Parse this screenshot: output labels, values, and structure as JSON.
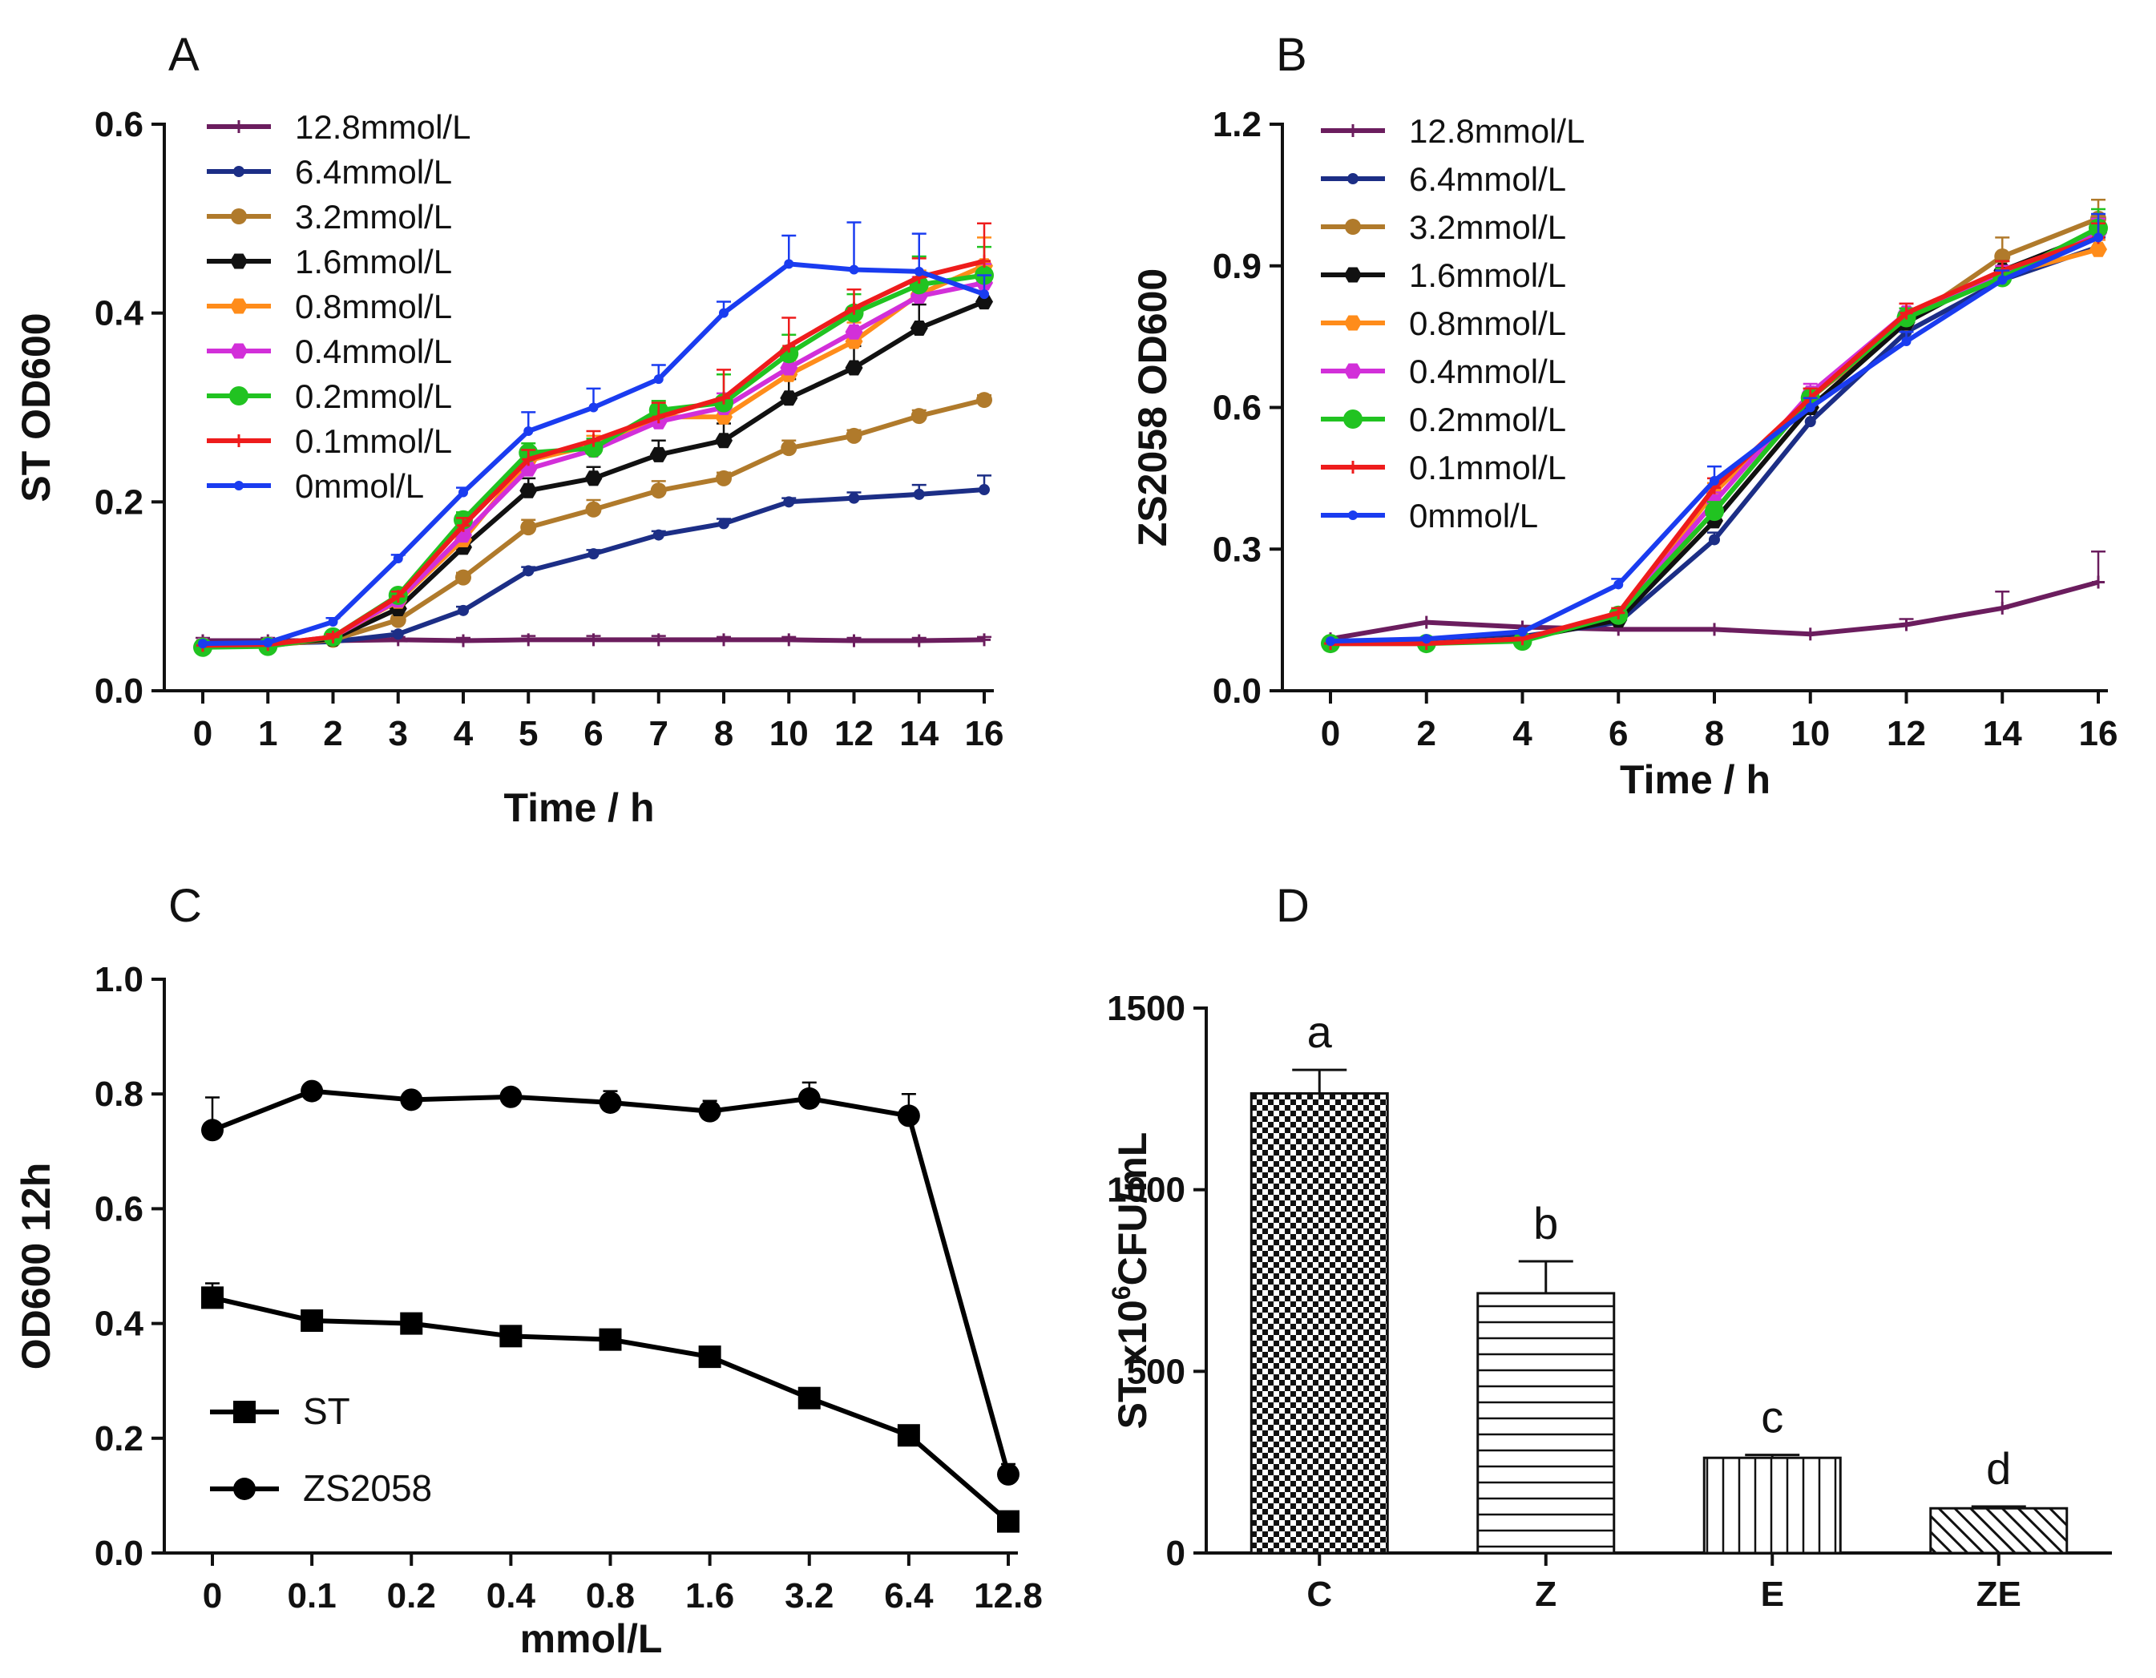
{
  "chart_data": [
    {
      "panel": "A",
      "type": "line",
      "xlabel": "Time / h",
      "ylabel": "ST OD600",
      "ylim": [
        0,
        0.6
      ],
      "yticks": [
        "0.0",
        "0.2",
        "0.4",
        "0.6"
      ],
      "categories": [
        "0",
        "1",
        "2",
        "3",
        "4",
        "5",
        "6",
        "7",
        "8",
        "10",
        "12",
        "14",
        "16"
      ],
      "series": [
        {
          "name": "12.8mmol/L",
          "color": "#6b1d5e",
          "values": [
            0.053,
            0.053,
            0.053,
            0.054,
            0.053,
            0.054,
            0.054,
            0.054,
            0.054,
            0.054,
            0.053,
            0.053,
            0.054
          ],
          "errors": [
            0.003,
            0.003,
            0.003,
            0.003,
            0.003,
            0.004,
            0.004,
            0.004,
            0.003,
            0.003,
            0.003,
            0.003,
            0.003
          ]
        },
        {
          "name": "6.4mmol/L",
          "color": "#1c2e86",
          "values": [
            0.05,
            0.05,
            0.052,
            0.06,
            0.085,
            0.127,
            0.145,
            0.165,
            0.177,
            0.2,
            0.204,
            0.208,
            0.213
          ],
          "errors": [
            0.002,
            0.002,
            0.003,
            0.003,
            0.004,
            0.004,
            0.004,
            0.004,
            0.005,
            0.004,
            0.006,
            0.01,
            0.015
          ]
        },
        {
          "name": "3.2mmol/L",
          "color": "#b07a2b",
          "values": [
            0.048,
            0.048,
            0.054,
            0.075,
            0.12,
            0.173,
            0.192,
            0.212,
            0.225,
            0.257,
            0.27,
            0.291,
            0.308
          ],
          "errors": [
            0.002,
            0.002,
            0.003,
            0.004,
            0.005,
            0.008,
            0.01,
            0.01,
            0.006,
            0.008,
            0.006,
            0.006,
            0.005
          ]
        },
        {
          "name": "1.6mmol/L",
          "color": "#111111",
          "values": [
            0.048,
            0.049,
            0.055,
            0.087,
            0.152,
            0.212,
            0.225,
            0.25,
            0.265,
            0.31,
            0.342,
            0.384,
            0.412
          ],
          "errors": [
            0.002,
            0.002,
            0.003,
            0.008,
            0.012,
            0.013,
            0.012,
            0.015,
            0.018,
            0.02,
            0.023,
            0.025,
            0.04
          ]
        },
        {
          "name": "0.8mmol/L",
          "color": "#ff8c1a",
          "values": [
            0.048,
            0.049,
            0.057,
            0.095,
            0.16,
            0.244,
            0.26,
            0.29,
            0.29,
            0.335,
            0.37,
            0.42,
            0.45
          ],
          "errors": [
            0.002,
            0.002,
            0.003,
            0.005,
            0.008,
            0.01,
            0.01,
            0.01,
            0.015,
            0.015,
            0.02,
            0.025,
            0.03
          ]
        },
        {
          "name": "0.4mmol/L",
          "color": "#d22fd9",
          "values": [
            0.048,
            0.049,
            0.057,
            0.096,
            0.165,
            0.235,
            0.255,
            0.285,
            0.3,
            0.342,
            0.38,
            0.418,
            0.432
          ],
          "errors": [
            0.002,
            0.002,
            0.003,
            0.005,
            0.008,
            0.01,
            0.01,
            0.012,
            0.015,
            0.015,
            0.018,
            0.02,
            0.02
          ]
        },
        {
          "name": "0.2mmol/L",
          "color": "#21c321",
          "values": [
            0.046,
            0.047,
            0.057,
            0.101,
            0.181,
            0.252,
            0.257,
            0.297,
            0.305,
            0.357,
            0.4,
            0.43,
            0.44
          ],
          "errors": [
            0.002,
            0.002,
            0.003,
            0.005,
            0.008,
            0.01,
            0.01,
            0.01,
            0.03,
            0.02,
            0.02,
            0.03,
            0.03
          ]
        },
        {
          "name": "0.1mmol/L",
          "color": "#ee1c1c",
          "values": [
            0.048,
            0.049,
            0.057,
            0.1,
            0.175,
            0.245,
            0.265,
            0.29,
            0.31,
            0.365,
            0.405,
            0.438,
            0.455
          ],
          "errors": [
            0.002,
            0.002,
            0.003,
            0.005,
            0.008,
            0.01,
            0.01,
            0.015,
            0.03,
            0.03,
            0.02,
            0.02,
            0.04
          ]
        },
        {
          "name": "0mmol/L",
          "color": "#1a3cf0",
          "values": [
            0.05,
            0.051,
            0.073,
            0.14,
            0.21,
            0.275,
            0.3,
            0.33,
            0.4,
            0.452,
            0.446,
            0.444,
            0.42
          ],
          "errors": [
            0.002,
            0.002,
            0.004,
            0.004,
            0.005,
            0.02,
            0.02,
            0.015,
            0.012,
            0.03,
            0.05,
            0.04,
            0.02
          ]
        }
      ]
    },
    {
      "panel": "B",
      "type": "line",
      "xlabel": "Time / h",
      "ylabel": "ZS2058 OD600",
      "ylim": [
        0,
        1.2
      ],
      "yticks": [
        "0.0",
        "0.3",
        "0.6",
        "0.9",
        "1.2"
      ],
      "xlim": [
        0,
        16
      ],
      "xticks": [
        "0",
        "2",
        "4",
        "6",
        "8",
        "10",
        "12",
        "14",
        "16"
      ],
      "x": [
        0,
        2,
        4,
        6,
        8,
        10,
        12,
        14,
        16
      ],
      "series": [
        {
          "name": "12.8mmol/L",
          "color": "#6b1d5e",
          "values": [
            0.11,
            0.145,
            0.135,
            0.13,
            0.13,
            0.12,
            0.14,
            0.175,
            0.23
          ],
          "errors": [
            0.005,
            0.005,
            0.005,
            0.005,
            0.005,
            0.005,
            0.012,
            0.035,
            0.065
          ]
        },
        {
          "name": "6.4mmol/L",
          "color": "#1c2e86",
          "values": [
            0.1,
            0.105,
            0.115,
            0.145,
            0.32,
            0.57,
            0.76,
            0.87,
            0.94
          ],
          "errors": [
            0.005,
            0.005,
            0.005,
            0.01,
            0.015,
            0.02,
            0.02,
            0.02,
            0.02
          ]
        },
        {
          "name": "3.2mmol/L",
          "color": "#b07a2b",
          "values": [
            0.1,
            0.1,
            0.11,
            0.155,
            0.38,
            0.62,
            0.78,
            0.92,
            1.0
          ],
          "errors": [
            0.005,
            0.005,
            0.005,
            0.01,
            0.02,
            0.02,
            0.02,
            0.04,
            0.04
          ]
        },
        {
          "name": "1.6mmol/L",
          "color": "#111111",
          "values": [
            0.1,
            0.1,
            0.11,
            0.15,
            0.36,
            0.6,
            0.78,
            0.89,
            0.97
          ],
          "errors": [
            0.005,
            0.005,
            0.005,
            0.01,
            0.02,
            0.02,
            0.02,
            0.02,
            0.03
          ]
        },
        {
          "name": "0.8mmol/L",
          "color": "#ff8c1a",
          "values": [
            0.1,
            0.1,
            0.11,
            0.16,
            0.42,
            0.62,
            0.79,
            0.88,
            0.935
          ],
          "errors": [
            0.005,
            0.005,
            0.005,
            0.01,
            0.02,
            0.02,
            0.02,
            0.02,
            0.02
          ]
        },
        {
          "name": "0.4mmol/L",
          "color": "#d22fd9",
          "values": [
            0.1,
            0.1,
            0.11,
            0.16,
            0.4,
            0.63,
            0.8,
            0.88,
            0.97
          ],
          "errors": [
            0.005,
            0.005,
            0.005,
            0.01,
            0.02,
            0.02,
            0.02,
            0.02,
            0.03
          ]
        },
        {
          "name": "0.2mmol/L",
          "color": "#21c321",
          "values": [
            0.1,
            0.1,
            0.105,
            0.16,
            0.38,
            0.62,
            0.79,
            0.875,
            0.98
          ],
          "errors": [
            0.005,
            0.005,
            0.005,
            0.01,
            0.02,
            0.02,
            0.02,
            0.02,
            0.04
          ]
        },
        {
          "name": "0.1mmol/L",
          "color": "#ee1c1c",
          "values": [
            0.1,
            0.1,
            0.11,
            0.165,
            0.43,
            0.62,
            0.8,
            0.89,
            0.96
          ],
          "errors": [
            0.005,
            0.005,
            0.005,
            0.01,
            0.02,
            0.02,
            0.02,
            0.02,
            0.03
          ]
        },
        {
          "name": "0mmol/L",
          "color": "#1a3cf0",
          "values": [
            0.105,
            0.11,
            0.125,
            0.225,
            0.445,
            0.6,
            0.74,
            0.87,
            0.96
          ],
          "errors": [
            0.005,
            0.005,
            0.005,
            0.012,
            0.03,
            0.02,
            0.02,
            0.02,
            0.05
          ]
        }
      ]
    },
    {
      "panel": "C",
      "type": "line",
      "xlabel": "mmol/L",
      "ylabel": "OD600 12h",
      "ylim": [
        0,
        1.0
      ],
      "yticks": [
        "0.0",
        "0.2",
        "0.4",
        "0.6",
        "0.8",
        "1.0"
      ],
      "categories": [
        "0",
        "0.1",
        "0.2",
        "0.4",
        "0.8",
        "1.6",
        "3.2",
        "6.4",
        "12.8"
      ],
      "series": [
        {
          "name": "ST",
          "marker": "square",
          "color": "#000000",
          "values": [
            0.445,
            0.405,
            0.4,
            0.378,
            0.372,
            0.342,
            0.27,
            0.205,
            0.055
          ],
          "errors": [
            0.025,
            0.008,
            0.006,
            0.008,
            0.008,
            0.008,
            0.008,
            0.008,
            0.006
          ]
        },
        {
          "name": "ZS2058",
          "marker": "circle",
          "color": "#000000",
          "values": [
            0.737,
            0.805,
            0.79,
            0.795,
            0.785,
            0.77,
            0.792,
            0.762,
            0.137
          ],
          "errors": [
            0.057,
            0.01,
            0.01,
            0.01,
            0.02,
            0.018,
            0.028,
            0.038,
            0.018
          ]
        }
      ]
    },
    {
      "panel": "D",
      "type": "bar",
      "xlabel": "",
      "ylabel_main": "ST x10",
      "ylabel_exp": "6",
      "ylabel_tail": "CFU/mL",
      "ylim": [
        0,
        1500
      ],
      "yticks": [
        "0",
        "500",
        "1000",
        "1500"
      ],
      "categories": [
        "C",
        "Z",
        "E",
        "ZE"
      ],
      "values": [
        1265,
        715,
        262,
        123
      ],
      "errors": [
        65,
        88,
        8,
        5
      ],
      "significance": [
        "a",
        "b",
        "c",
        "d"
      ],
      "patterns": [
        "checker",
        "horizontal",
        "vertical",
        "diagonal"
      ]
    }
  ]
}
